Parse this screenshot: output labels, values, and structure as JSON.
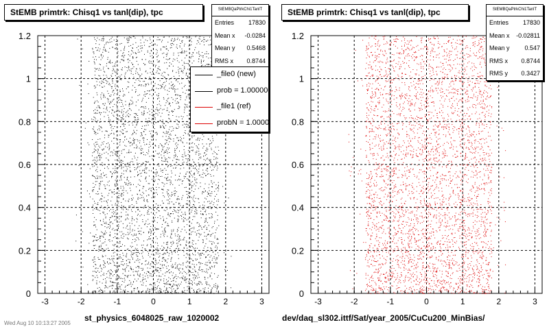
{
  "footer": "Wed Aug 10 10:13:27 2005",
  "chart_data": [
    {
      "type": "scatter",
      "title": "StEMB primtrk: Chisq1 vs tanl(dip), tpc",
      "xlabel": "st_physics_6048025_raw_1020002",
      "ylabel": "",
      "xlim": [
        -3.2,
        3.2
      ],
      "ylim": [
        0,
        1.2
      ],
      "xticks": [
        "-3",
        "-2",
        "-1",
        "0",
        "1",
        "2",
        "3"
      ],
      "yticks": [
        "0",
        "0.2",
        "0.4",
        "0.6",
        "0.8",
        "1",
        "1.2"
      ],
      "grid": true,
      "marker_color": "#000000",
      "x_core_range": [
        -1.7,
        1.8
      ],
      "stats": {
        "name": "StEMBQaPtrkChi1TanlT",
        "entries": "17830",
        "mean_x": "-0.0284",
        "mean_y": "0.5468",
        "rms_x": "0.8744",
        "rms_y": ""
      }
    },
    {
      "type": "scatter",
      "title": "StEMB primtrk: Chisq1 vs tanl(dip), tpc",
      "xlabel": "dev/daq_sl302.ittf/Sat/year_2005/CuCu200_MinBias/",
      "ylabel": "",
      "xlim": [
        -3.2,
        3.2
      ],
      "ylim": [
        0,
        1.2
      ],
      "xticks": [
        "-3",
        "-2",
        "-1",
        "0",
        "1",
        "2",
        "3"
      ],
      "yticks": [
        "0",
        "0.2",
        "0.4",
        "0.6",
        "0.8",
        "1",
        "1.2"
      ],
      "grid": true,
      "marker_color": "#dd0000",
      "x_core_range": [
        -1.7,
        1.8
      ],
      "stats": {
        "name": "StEMBQaPtrkChi1TanlT",
        "entries": "17830",
        "mean_x": "-0.02811",
        "mean_y": "0.547",
        "rms_x": "0.8744",
        "rms_y": "0.3427"
      }
    }
  ],
  "legend": {
    "items": [
      {
        "label": "_file0 (new)",
        "color": "#000000"
      },
      {
        "label": "prob = 1.000000",
        "color": "#000000"
      },
      {
        "label": "_file1 (ref)",
        "color": "#dd0000"
      },
      {
        "label": "probN = 1.000000",
        "color": "#dd0000"
      }
    ]
  },
  "labels": {
    "entries": "Entries",
    "mean_x": "Mean x",
    "mean_y": "Mean y",
    "rms_x": "RMS x",
    "rms_y": "RMS y"
  }
}
